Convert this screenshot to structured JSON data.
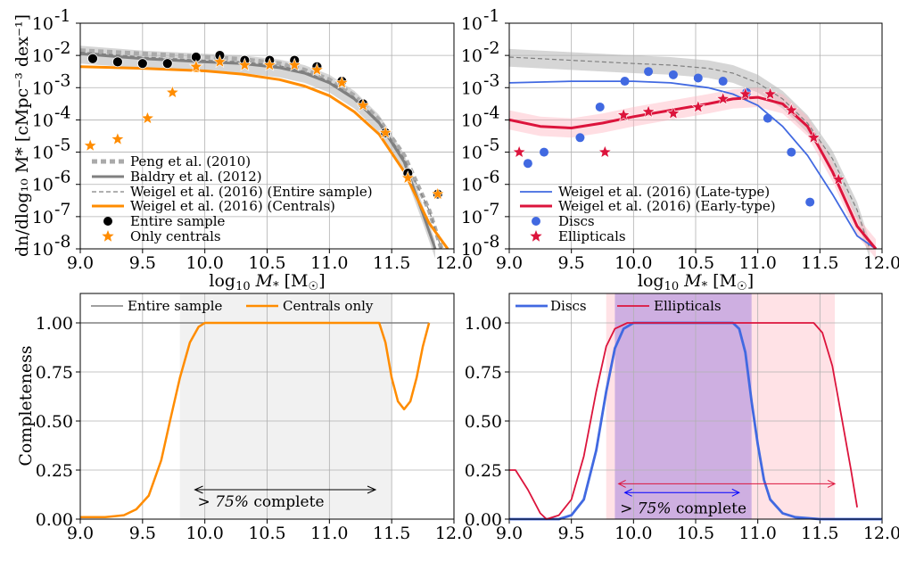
{
  "chart_data": [
    {
      "type": "scatter",
      "panel": "top-left",
      "xlabel_main": "log",
      "xlabel_sub": "10",
      "xlabel_var": " M",
      "xlabel_star": "*",
      "xlabel_unit": " [M",
      "xlabel_sun": "☉",
      "xlabel_close": "]",
      "ylabel": "dn/dlog₁₀ M* [cMpc⁻³ dex⁻¹]",
      "xlim": [
        9.0,
        12.0
      ],
      "ylim_log10": [
        -8,
        -1
      ],
      "yscale": "log",
      "xticks": [
        "9.0",
        "9.5",
        "10.0",
        "10.5",
        "11.0",
        "11.5",
        "12.0"
      ],
      "yticks": [
        "10",
        "10",
        "10",
        "10",
        "10",
        "10",
        "10",
        "10"
      ],
      "ytick_exponents": [
        "-8",
        "-7",
        "-6",
        "-5",
        "-4",
        "-3",
        "-2",
        "-1"
      ],
      "grid": true,
      "legend_position": "lower-left",
      "legend": [
        "Peng et al. (2010)",
        "Baldry et al. (2012)",
        "Weigel et al. (2016) (Entire sample)",
        "Weigel et al. (2016) (Centrals)",
        "Entire sample",
        "Only centrals"
      ],
      "series": [
        {
          "name": "Peng et al. (2010)",
          "kind": "line",
          "color": "#aaaaaa",
          "style": "dotted-thick",
          "x": [
            9.0,
            9.5,
            10.0,
            10.3,
            10.6,
            10.8,
            11.0,
            11.2,
            11.4,
            11.6,
            11.8,
            11.9
          ],
          "y_log10": [
            -1.85,
            -1.95,
            -2.05,
            -2.12,
            -2.25,
            -2.45,
            -2.75,
            -3.25,
            -4.0,
            -5.1,
            -6.8,
            -8.0
          ]
        },
        {
          "name": "Baldry et al. (2012)",
          "kind": "line",
          "color": "#808080",
          "style": "solid-thick",
          "x": [
            9.0,
            9.5,
            10.0,
            10.3,
            10.6,
            10.8,
            11.0,
            11.2,
            11.4,
            11.6,
            11.75,
            11.85
          ],
          "y_log10": [
            -1.95,
            -2.1,
            -2.2,
            -2.25,
            -2.38,
            -2.55,
            -2.85,
            -3.35,
            -4.1,
            -5.3,
            -6.9,
            -8.0
          ]
        },
        {
          "name": "Weigel et al. (2016) (Entire sample)",
          "kind": "line",
          "color": "#808080",
          "style": "dashed",
          "x": [
            9.0,
            9.5,
            10.0,
            10.3,
            10.6,
            10.8,
            11.0,
            11.2,
            11.4,
            11.6,
            11.8,
            11.9
          ],
          "y_log10": [
            -1.9,
            -2.05,
            -2.15,
            -2.2,
            -2.32,
            -2.5,
            -2.8,
            -3.3,
            -4.05,
            -5.2,
            -6.8,
            -8.0
          ]
        },
        {
          "name": "Weigel et al. (2016) (Centrals)",
          "kind": "line",
          "color": "#ff8c00",
          "style": "solid-thick",
          "x": [
            9.0,
            9.5,
            10.0,
            10.3,
            10.6,
            10.8,
            11.0,
            11.2,
            11.4,
            11.6,
            11.8,
            11.95
          ],
          "y_log10": [
            -2.35,
            -2.4,
            -2.48,
            -2.58,
            -2.75,
            -2.95,
            -3.25,
            -3.75,
            -4.45,
            -5.6,
            -7.2,
            -8.0
          ]
        },
        {
          "name": "Entire sample",
          "kind": "points",
          "color": "#000000",
          "marker": "circle",
          "x": [
            9.1,
            9.3,
            9.5,
            9.7,
            9.93,
            10.12,
            10.32,
            10.52,
            10.72,
            10.9,
            11.1,
            11.27,
            11.45,
            11.63,
            11.87
          ],
          "y_log10": [
            -2.1,
            -2.2,
            -2.25,
            -2.25,
            -2.05,
            -2.0,
            -2.15,
            -2.15,
            -2.15,
            -2.35,
            -2.8,
            -3.5,
            -4.4,
            -5.65,
            -6.3
          ]
        },
        {
          "name": "Only centrals",
          "kind": "points",
          "color": "#ff8c00",
          "marker": "star",
          "x": [
            9.08,
            9.3,
            9.54,
            9.74,
            9.93,
            10.12,
            10.32,
            10.52,
            10.72,
            10.9,
            11.1,
            11.27,
            11.45,
            11.63,
            11.87
          ],
          "y_log10": [
            -4.8,
            -4.6,
            -3.95,
            -3.15,
            -2.35,
            -2.2,
            -2.3,
            -2.3,
            -2.3,
            -2.45,
            -2.85,
            -3.55,
            -4.4,
            -5.8,
            -6.3
          ]
        }
      ]
    },
    {
      "type": "scatter",
      "panel": "top-right",
      "xlabel_main": "log",
      "xlabel_sub": "10",
      "xlabel_var": " M",
      "xlabel_star": "*",
      "xlabel_unit": " [M",
      "xlabel_sun": "☉",
      "xlabel_close": "]",
      "xlim": [
        9.0,
        12.0
      ],
      "ylim_log10": [
        -8,
        -1
      ],
      "yscale": "log",
      "xticks": [
        "9.0",
        "9.5",
        "10.0",
        "10.5",
        "11.0",
        "11.5",
        "12.0"
      ],
      "grid": true,
      "legend_position": "lower-left",
      "legend": [
        "Weigel et al. (2016) (Late-type)",
        "Weigel et al. (2016) (Early-type)",
        "Discs",
        "Ellipticals"
      ],
      "series": [
        {
          "name": "Weigel et al. (2016) (Entire sample)",
          "kind": "line",
          "color": "#808080",
          "style": "dashed",
          "x": [
            9.0,
            9.5,
            10.0,
            10.3,
            10.6,
            10.8,
            11.0,
            11.2,
            11.4,
            11.6,
            11.8,
            11.9
          ],
          "y_log10": [
            -2.05,
            -2.15,
            -2.25,
            -2.3,
            -2.4,
            -2.55,
            -2.85,
            -3.35,
            -4.1,
            -5.2,
            -6.8,
            -8.0
          ]
        },
        {
          "name": "Weigel et al. (2016) (Late-type)",
          "kind": "line",
          "color": "#4169e1",
          "style": "solid",
          "x": [
            9.0,
            9.5,
            10.0,
            10.3,
            10.6,
            10.8,
            11.0,
            11.2,
            11.4,
            11.6,
            11.8,
            11.95
          ],
          "y_log10": [
            -2.85,
            -2.8,
            -2.8,
            -2.85,
            -3.0,
            -3.2,
            -3.55,
            -4.2,
            -5.1,
            -6.3,
            -7.6,
            -8.0
          ]
        },
        {
          "name": "Weigel et al. (2016) (Early-type)",
          "kind": "line",
          "color": "#dc143c",
          "style": "solid-thick",
          "x": [
            9.0,
            9.25,
            9.5,
            9.75,
            10.0,
            10.3,
            10.6,
            10.8,
            11.0,
            11.2,
            11.4,
            11.6,
            11.8,
            11.95
          ],
          "y_log10": [
            -4.0,
            -4.2,
            -4.25,
            -4.1,
            -3.9,
            -3.7,
            -3.5,
            -3.35,
            -3.3,
            -3.5,
            -4.2,
            -5.6,
            -7.3,
            -8.0
          ]
        },
        {
          "name": "Discs",
          "kind": "points",
          "color": "#4169e1",
          "marker": "circle",
          "x": [
            9.15,
            9.28,
            9.57,
            9.73,
            9.93,
            10.12,
            10.32,
            10.52,
            10.72,
            10.91,
            11.08,
            11.27,
            11.42
          ],
          "y_log10": [
            -5.35,
            -5.0,
            -4.55,
            -3.6,
            -2.8,
            -2.5,
            -2.6,
            -2.7,
            -2.8,
            -3.15,
            -3.95,
            -5.0,
            -6.55
          ]
        },
        {
          "name": "Ellipticals",
          "kind": "points",
          "color": "#dc143c",
          "marker": "star",
          "x": [
            9.08,
            9.77,
            9.92,
            10.12,
            10.32,
            10.52,
            10.72,
            10.9,
            11.1,
            11.27,
            11.45,
            11.65
          ],
          "y_log10": [
            -5.0,
            -5.0,
            -3.85,
            -3.75,
            -3.8,
            -3.6,
            -3.35,
            -3.2,
            -3.2,
            -3.7,
            -4.55,
            -5.85
          ]
        }
      ]
    },
    {
      "type": "line",
      "panel": "bottom-left",
      "ylabel": "Completeness",
      "xlim": [
        9.0,
        12.0
      ],
      "ylim": [
        0.0,
        1.15
      ],
      "xticks": [
        "9.0",
        "9.5",
        "10.0",
        "10.5",
        "11.0",
        "11.5",
        "12.0"
      ],
      "yticks": [
        "0.00",
        "0.25",
        "0.50",
        "0.75",
        "1.00"
      ],
      "grid": true,
      "legend_position": "top",
      "legend": [
        "Entire sample",
        "Centrals only"
      ],
      "shaded_range": [
        9.8,
        11.5
      ],
      "annotation_prefix": "> 75%",
      "annotation_suffix": " complete",
      "annotation_arrow": [
        9.92,
        11.37
      ],
      "series": [
        {
          "name": "Entire sample",
          "color": "#808080",
          "x": [
            9.0,
            11.8
          ],
          "y": [
            1.0,
            1.0
          ]
        },
        {
          "name": "Centrals only",
          "color": "#ff8c00",
          "x": [
            9.0,
            9.2,
            9.35,
            9.45,
            9.55,
            9.65,
            9.72,
            9.8,
            9.88,
            9.95,
            10.0,
            11.4,
            11.45,
            11.5,
            11.55,
            11.6,
            11.65,
            11.7,
            11.75,
            11.8
          ],
          "y": [
            0.01,
            0.01,
            0.02,
            0.05,
            0.12,
            0.3,
            0.5,
            0.72,
            0.9,
            0.98,
            1.0,
            1.0,
            0.9,
            0.72,
            0.6,
            0.56,
            0.6,
            0.72,
            0.88,
            1.0
          ]
        }
      ]
    },
    {
      "type": "line",
      "panel": "bottom-right",
      "xlim": [
        9.0,
        12.0
      ],
      "ylim": [
        0.0,
        1.15
      ],
      "xticks": [
        "9.0",
        "9.5",
        "10.0",
        "10.5",
        "11.0",
        "11.5",
        "12.0"
      ],
      "yticks": [
        "0.00",
        "0.25",
        "0.50",
        "0.75",
        "1.00"
      ],
      "grid": true,
      "legend_position": "top",
      "legend": [
        "Discs",
        "Ellipticals"
      ],
      "shaded_ranges": [
        {
          "range": [
            9.85,
            10.95
          ],
          "color": "#9370db"
        },
        {
          "range": [
            9.78,
            11.62
          ],
          "color": "#ffb6c1"
        }
      ],
      "annotation_prefix": "> 75%",
      "annotation_suffix": " complete",
      "annotation_arrows": [
        {
          "range": [
            9.88,
            11.62
          ],
          "color": "#dc143c"
        },
        {
          "range": [
            9.93,
            10.85
          ],
          "color": "#0000ff"
        }
      ],
      "series": [
        {
          "name": "Discs",
          "color": "#4169e1",
          "x": [
            9.0,
            9.4,
            9.5,
            9.6,
            9.7,
            9.78,
            9.85,
            9.92,
            10.0,
            10.8,
            10.85,
            10.9,
            10.95,
            11.0,
            11.05,
            11.1,
            11.2,
            11.3,
            11.5,
            12.0
          ],
          "y": [
            0.0,
            0.0,
            0.02,
            0.1,
            0.35,
            0.65,
            0.87,
            0.97,
            1.0,
            1.0,
            0.97,
            0.85,
            0.6,
            0.38,
            0.2,
            0.1,
            0.03,
            0.01,
            0.0,
            0.0
          ]
        },
        {
          "name": "Ellipticals",
          "color": "#dc143c",
          "x": [
            9.0,
            9.05,
            9.15,
            9.25,
            9.3,
            9.4,
            9.5,
            9.6,
            9.7,
            9.78,
            9.85,
            9.95,
            10.0,
            11.45,
            11.52,
            11.6,
            11.68,
            11.75,
            11.8
          ],
          "y": [
            0.25,
            0.25,
            0.15,
            0.03,
            0.0,
            0.02,
            0.1,
            0.32,
            0.65,
            0.88,
            0.97,
            1.0,
            1.0,
            1.0,
            0.95,
            0.78,
            0.5,
            0.25,
            0.06
          ]
        }
      ]
    }
  ]
}
